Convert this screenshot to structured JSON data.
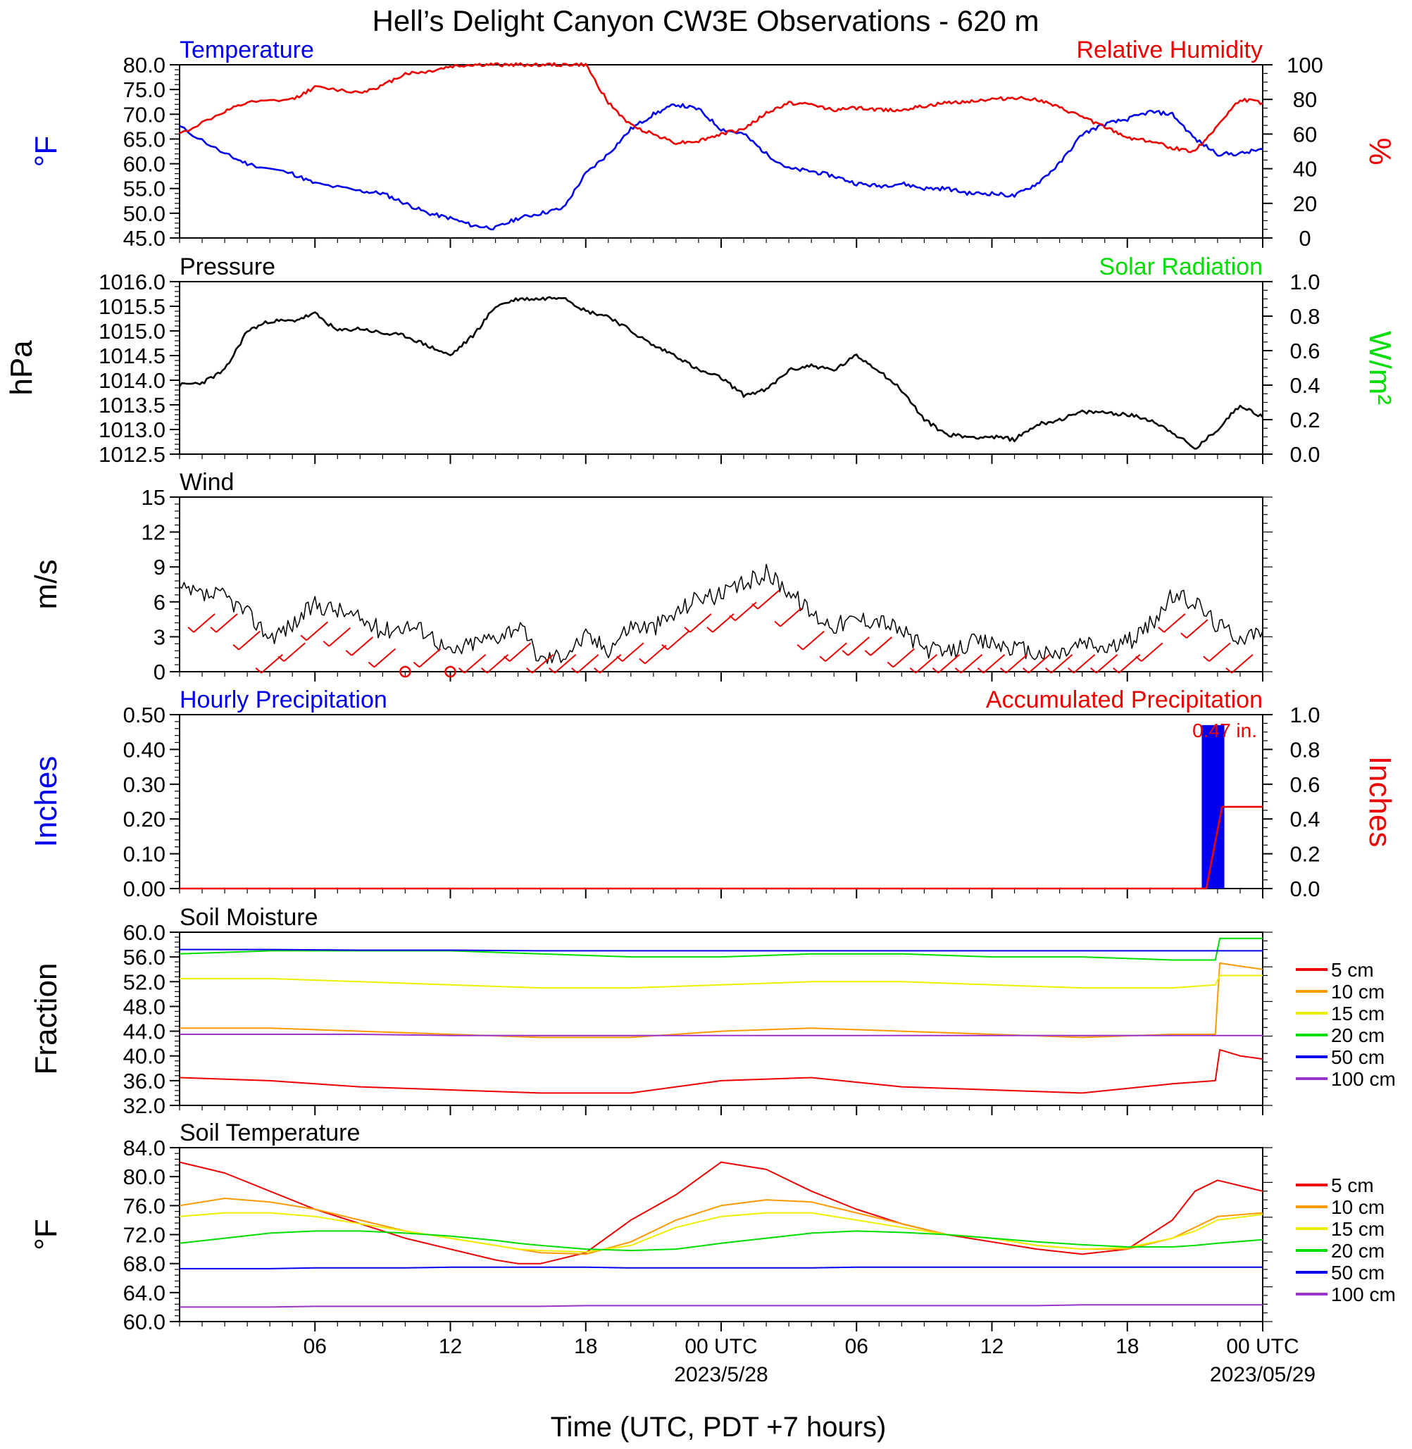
{
  "title": "Hell’s Delight Canyon CW3E Observations - 620 m",
  "x_axis": {
    "tick_labels": [
      "06",
      "12",
      "18",
      "00 UTC",
      "06",
      "12",
      "18",
      "00 UTC"
    ],
    "date_labels": [
      "2023/5/28",
      "2023/05/29"
    ],
    "xlabel": "Time (UTC, PDT +7 hours)"
  },
  "legend_labels": [
    "5 cm",
    "10 cm",
    "15 cm",
    "20 cm",
    "50 cm",
    "100 cm"
  ],
  "colors": {
    "blue": "#0000ee",
    "red": "#ee0000",
    "green": "#00dd00",
    "black": "#000000",
    "orange": "#ff9900",
    "yellow": "#eeee00",
    "purple": "#9933cc"
  },
  "chart_data": [
    {
      "type": "line",
      "title_left": "Temperature",
      "title_right": "Relative Humidity",
      "ylabel_left": "°F",
      "ylabel_right": "%",
      "ylim_left": [
        45,
        80
      ],
      "ylim_right": [
        0,
        100
      ],
      "yticks_left": [
        "80.0",
        "75.0",
        "70.0",
        "65.0",
        "60.0",
        "55.0",
        "50.0",
        "45.0"
      ],
      "yticks_right": [
        "100",
        "80",
        "60",
        "40",
        "20",
        "0"
      ],
      "x_hours": [
        0,
        2,
        3,
        5,
        6,
        8,
        9,
        10,
        11,
        12,
        13,
        14,
        15,
        16,
        17,
        18,
        19,
        20,
        21,
        22,
        23,
        24,
        25,
        26,
        27,
        28,
        29,
        30,
        31,
        32,
        33,
        34,
        35,
        36,
        37,
        38,
        39,
        40,
        41,
        42,
        43,
        44,
        45,
        46,
        47,
        48
      ],
      "series": [
        {
          "name": "Temperature",
          "axis": "left",
          "color": "blue",
          "values": [
            67.5,
            62,
            60,
            58,
            56,
            54.5,
            54,
            52,
            50,
            49,
            47.5,
            47,
            49,
            50,
            51,
            58,
            62,
            67,
            70,
            72,
            71,
            67,
            66,
            62,
            59,
            58.5,
            57.5,
            56,
            55.5,
            56,
            55,
            55,
            54,
            54,
            53.5,
            56,
            60,
            66,
            68,
            69,
            70.5,
            70,
            65,
            62,
            62,
            63
          ]
        },
        {
          "name": "Relative Humidity",
          "axis": "right",
          "color": "red",
          "values": [
            60,
            73,
            78,
            80,
            87,
            84,
            88,
            95,
            96,
            99,
            100,
            100,
            100,
            100,
            100,
            100,
            78,
            65,
            60,
            55,
            56,
            60,
            63,
            72,
            78,
            77,
            74,
            75,
            74,
            74,
            76,
            78,
            79,
            80,
            81,
            80,
            75,
            70,
            64,
            58,
            56,
            52,
            50,
            65,
            80,
            78
          ]
        }
      ]
    },
    {
      "type": "line",
      "title_left": "Pressure",
      "title_right": "Solar Radiation",
      "ylabel_left": "hPa",
      "ylabel_right": "W/m²",
      "ylim_left": [
        1012.5,
        1016.0
      ],
      "ylim_right": [
        0,
        1
      ],
      "yticks_left": [
        "1016.0",
        "1015.5",
        "1015.0",
        "1014.5",
        "1014.0",
        "1013.5",
        "1013.0",
        "1012.5"
      ],
      "yticks_right": [
        "1.0",
        "0.8",
        "0.6",
        "0.4",
        "0.2",
        "0.0"
      ],
      "x_hours": [
        0,
        1,
        2,
        3,
        4,
        5,
        6,
        7,
        8,
        9,
        10,
        11,
        12,
        13,
        14,
        15,
        16,
        17,
        18,
        19,
        20,
        21,
        22,
        23,
        24,
        25,
        26,
        27,
        28,
        29,
        30,
        31,
        32,
        33,
        34,
        35,
        36,
        37,
        38,
        39,
        40,
        41,
        42,
        43,
        44,
        45,
        46,
        47,
        48
      ],
      "series": [
        {
          "name": "Pressure",
          "axis": "left",
          "color": "black",
          "values": [
            1013.9,
            1013.95,
            1014.2,
            1015.0,
            1015.2,
            1015.2,
            1015.35,
            1015.0,
            1015.05,
            1014.95,
            1014.9,
            1014.7,
            1014.5,
            1014.9,
            1015.5,
            1015.65,
            1015.65,
            1015.7,
            1015.4,
            1015.3,
            1015.0,
            1014.7,
            1014.5,
            1014.2,
            1014.05,
            1013.7,
            1013.8,
            1014.2,
            1014.3,
            1014.2,
            1014.5,
            1014.2,
            1013.8,
            1013.2,
            1012.9,
            1012.85,
            1012.85,
            1012.8,
            1013.1,
            1013.2,
            1013.35,
            1013.35,
            1013.3,
            1013.2,
            1012.95,
            1012.6,
            1013.0,
            1013.5,
            1013.25
          ]
        },
        {
          "name": "Solar Radiation",
          "axis": "right",
          "color": "green",
          "values": []
        }
      ]
    },
    {
      "type": "line",
      "title_left": "Wind",
      "ylabel_left": "m/s",
      "ylim_left": [
        0,
        15
      ],
      "yticks_left": [
        "15",
        "12",
        "9",
        "6",
        "3",
        "0"
      ],
      "x_hours": [
        0,
        1,
        2,
        3,
        4,
        5,
        6,
        7,
        8,
        9,
        10,
        11,
        12,
        13,
        14,
        15,
        16,
        17,
        18,
        19,
        20,
        21,
        22,
        23,
        24,
        25,
        26,
        27,
        28,
        29,
        30,
        31,
        32,
        33,
        34,
        35,
        36,
        37,
        38,
        39,
        40,
        41,
        42,
        43,
        44,
        45,
        46,
        47,
        48
      ],
      "series": [
        {
          "name": "Wind speed",
          "axis": "left",
          "color": "black",
          "values": [
            7,
            6.5,
            6.5,
            5,
            3,
            4,
            5.8,
            5.3,
            4.5,
            3.5,
            4,
            3.5,
            1.5,
            2.5,
            3,
            4,
            1,
            1.5,
            3,
            2,
            4,
            3.8,
            5,
            6.5,
            6.5,
            7.5,
            8.5,
            7,
            5,
            4,
            4.5,
            4.5,
            3.5,
            2,
            1.5,
            2.5,
            2.5,
            2,
            1.5,
            1.5,
            2.5,
            2,
            2.5,
            4,
            6.5,
            6,
            4,
            3,
            3.5
          ]
        }
      ],
      "calm_markers_hours": [
        10,
        12
      ]
    },
    {
      "type": "bar",
      "title_left": "Hourly Precipitation",
      "title_right": "Accumulated Precipitation",
      "ylabel_left": "Inches",
      "ylabel_right": "Inches",
      "ylim_left": [
        0,
        0.5
      ],
      "ylim_right": [
        0,
        1
      ],
      "yticks_left": [
        "0.50",
        "0.40",
        "0.30",
        "0.20",
        "0.10",
        "0.00"
      ],
      "yticks_right": [
        "1.0",
        "0.8",
        "0.6",
        "0.4",
        "0.2",
        "0.0"
      ],
      "annotation": "0.47 in.",
      "bars": [
        {
          "start_hour": 45.3,
          "end_hour": 46.3,
          "value": 0.47,
          "color": "blue"
        }
      ],
      "accumulated": {
        "color": "red",
        "x_hours": [
          0,
          45.5,
          46.2,
          48
        ],
        "values": [
          0,
          0,
          0.47,
          0.47
        ]
      }
    },
    {
      "type": "line",
      "title_left": "Soil Moisture",
      "ylabel_left": "Fraction",
      "ylim_left": [
        32,
        60
      ],
      "yticks_left": [
        "60.0",
        "56.0",
        "52.0",
        "48.0",
        "44.0",
        "40.0",
        "36.0",
        "32.0"
      ],
      "x_hours": [
        0,
        4,
        8,
        12,
        16,
        20,
        24,
        28,
        32,
        36,
        40,
        44,
        45.9,
        46.1,
        47,
        48
      ],
      "series": [
        {
          "name": "5 cm",
          "color": "red",
          "values": [
            36.5,
            36,
            35,
            34.5,
            34,
            34,
            36,
            36.5,
            35,
            34.5,
            34,
            35.5,
            36,
            41,
            40,
            39.5
          ]
        },
        {
          "name": "10 cm",
          "color": "orange",
          "values": [
            44.5,
            44.5,
            44,
            43.5,
            43,
            43,
            44,
            44.5,
            44,
            43.5,
            43,
            43.5,
            43.5,
            55,
            54.5,
            54
          ]
        },
        {
          "name": "15 cm",
          "color": "yellow",
          "values": [
            52.5,
            52.5,
            52,
            51.5,
            51,
            51,
            51.5,
            52,
            52,
            51.5,
            51,
            51,
            51.5,
            53,
            53,
            53
          ]
        },
        {
          "name": "20 cm",
          "color": "green",
          "values": [
            56.5,
            57,
            57,
            57,
            56.5,
            56,
            56,
            56.5,
            56.5,
            56,
            56,
            55.5,
            55.5,
            59,
            59,
            59
          ]
        },
        {
          "name": "50 cm",
          "color": "blue",
          "values": [
            57.2,
            57.2,
            57.1,
            57.1,
            57,
            57,
            57,
            57,
            57,
            57,
            57,
            57,
            57,
            57,
            57,
            57
          ]
        },
        {
          "name": "100 cm",
          "color": "purple",
          "values": [
            43.5,
            43.5,
            43.5,
            43.3,
            43.3,
            43.3,
            43.3,
            43.3,
            43.3,
            43.3,
            43.3,
            43.3,
            43.3,
            43.3,
            43.3,
            43.3
          ]
        }
      ]
    },
    {
      "type": "line",
      "title_left": "Soil Temperature",
      "ylabel_left": "°F",
      "ylim_left": [
        60,
        84
      ],
      "yticks_left": [
        "84.0",
        "80.0",
        "76.0",
        "72.0",
        "68.0",
        "64.0",
        "60.0"
      ],
      "x_hours": [
        0,
        2,
        4,
        6,
        8,
        10,
        12,
        14,
        15,
        16,
        18,
        20,
        22,
        24,
        26,
        28,
        30,
        32,
        34,
        36,
        38,
        40,
        42,
        44,
        45,
        46,
        48
      ],
      "series": [
        {
          "name": "5 cm",
          "color": "red",
          "values": [
            82,
            80.5,
            78,
            75.5,
            73.5,
            71.5,
            70,
            68.5,
            68,
            68,
            69.5,
            74,
            77.5,
            82,
            81,
            78,
            75.5,
            73.5,
            72,
            71,
            70,
            69.3,
            70,
            74,
            78,
            79.5,
            78
          ]
        },
        {
          "name": "10 cm",
          "color": "orange",
          "values": [
            76,
            77,
            76.5,
            75.5,
            74,
            72.5,
            71.5,
            70.5,
            70,
            69.5,
            69.3,
            71,
            74,
            76,
            76.8,
            76.5,
            75,
            73.5,
            72,
            71.5,
            70.5,
            70,
            70,
            71.5,
            73,
            74.5,
            75
          ]
        },
        {
          "name": "15 cm",
          "color": "yellow",
          "values": [
            74.5,
            75,
            75,
            74.5,
            73.5,
            72.5,
            71.5,
            70.5,
            70,
            69.8,
            69.6,
            70.5,
            73,
            74.5,
            75,
            75,
            74,
            73,
            72,
            71.5,
            70.5,
            70,
            70.2,
            71.5,
            72.5,
            74,
            74.8
          ]
        },
        {
          "name": "20 cm",
          "color": "green",
          "values": [
            70.8,
            71.5,
            72.2,
            72.5,
            72.5,
            72.2,
            71.8,
            71.2,
            70.8,
            70.5,
            70,
            69.8,
            70,
            70.8,
            71.5,
            72.2,
            72.5,
            72.3,
            72,
            71.5,
            71,
            70.6,
            70.3,
            70.3,
            70.5,
            70.8,
            71.3
          ]
        },
        {
          "name": "50 cm",
          "color": "blue",
          "values": [
            67.3,
            67.3,
            67.3,
            67.4,
            67.4,
            67.4,
            67.5,
            67.5,
            67.5,
            67.5,
            67.5,
            67.4,
            67.4,
            67.4,
            67.4,
            67.4,
            67.5,
            67.5,
            67.5,
            67.5,
            67.5,
            67.5,
            67.5,
            67.5,
            67.5,
            67.5,
            67.5
          ]
        },
        {
          "name": "100 cm",
          "color": "purple",
          "values": [
            62,
            62,
            62,
            62.1,
            62.1,
            62.1,
            62.1,
            62.1,
            62.1,
            62.1,
            62.2,
            62.2,
            62.2,
            62.2,
            62.2,
            62.2,
            62.2,
            62.2,
            62.2,
            62.2,
            62.2,
            62.3,
            62.3,
            62.3,
            62.3,
            62.3,
            62.3
          ]
        }
      ]
    }
  ]
}
